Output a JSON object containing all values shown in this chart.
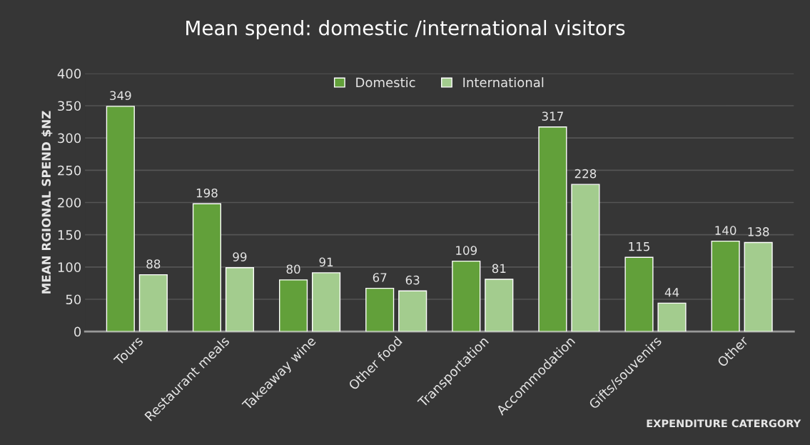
{
  "chart_data": {
    "type": "bar",
    "title": "Mean spend: domestic /international visitors",
    "xlabel": "EXPENDITURE CATERGORY",
    "ylabel": "MEAN RGIONAL SPEND $NZ",
    "categories": [
      "Tours",
      "Restaurant meals",
      "Takeaway wine",
      "Other food",
      "Transportation",
      "Accommodation",
      "Gifts/souvenirs",
      "Other"
    ],
    "series": [
      {
        "name": "Domestic",
        "color": "#62a03a",
        "values": [
          349,
          198,
          80,
          67,
          109,
          317,
          115,
          140
        ]
      },
      {
        "name": "International",
        "color": "#a3cc8e",
        "values": [
          88,
          99,
          91,
          63,
          81,
          228,
          44,
          138
        ]
      }
    ],
    "ylim": [
      0,
      400
    ],
    "yticks": [
      0,
      50,
      100,
      150,
      200,
      250,
      300,
      350,
      400
    ],
    "grid": "y",
    "legend": "top",
    "data_labels": true
  }
}
